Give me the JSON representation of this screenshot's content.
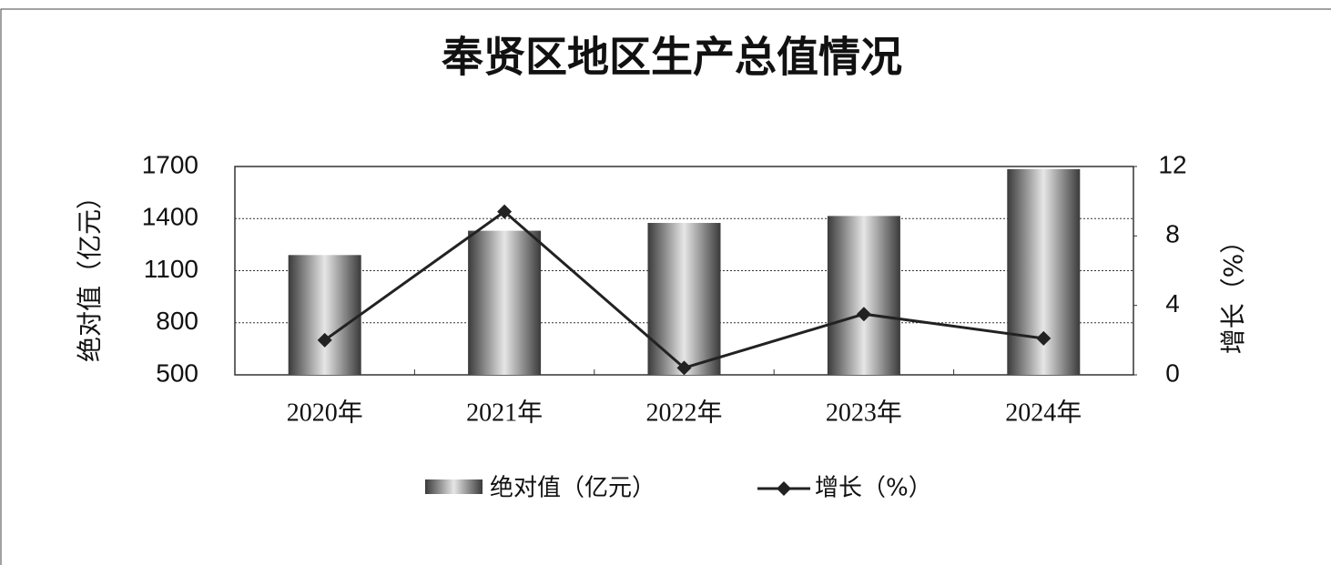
{
  "chart_data": {
    "type": "bar_line",
    "title": "奉贤区地区生产总值情况",
    "y_label": "绝对值（亿元）",
    "y2_label": "增长（%）",
    "categories": [
      "2020年",
      "2021年",
      "2022年",
      "2023年",
      "2024年"
    ],
    "series": [
      {
        "name": "绝对值（亿元）",
        "type": "bar",
        "color": "#3a3a3a",
        "values": [
          1190,
          1330,
          1375,
          1415,
          1685
        ]
      },
      {
        "name": "增长（%）",
        "type": "line",
        "axis": "y2",
        "color": "#222222",
        "values": [
          2.0,
          9.4,
          0.4,
          3.5,
          2.1
        ]
      }
    ],
    "ylim": [
      500,
      1700
    ],
    "yticks": [
      500,
      800,
      1100,
      1400,
      1700
    ],
    "y2lim": [
      0,
      12
    ],
    "y2ticks": [
      0,
      4,
      8,
      12
    ],
    "grid": true,
    "legend": "bottom"
  }
}
